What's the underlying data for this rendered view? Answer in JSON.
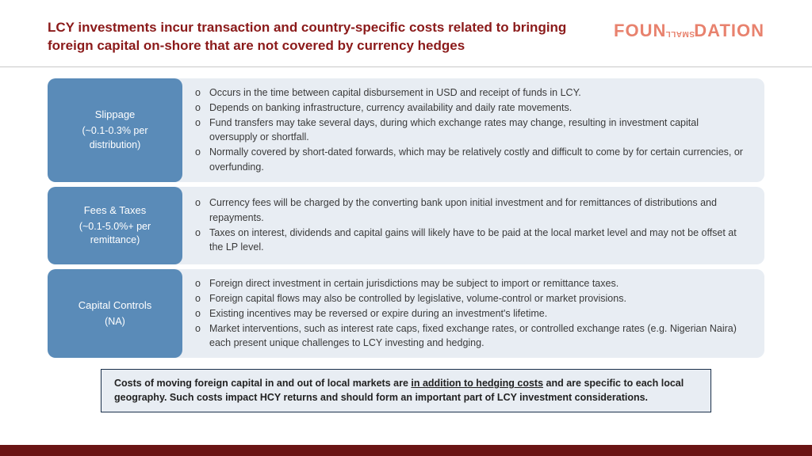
{
  "header": {
    "title": "LCY investments incur transaction and country-specific costs related to bringing foreign capital on-shore that are not covered by currency hedges",
    "logo_left": "FOUN",
    "logo_mid": "SMALL",
    "logo_right": "DATION"
  },
  "colors": {
    "title_color": "#8b1a1a",
    "logo_color": "#e8826e",
    "label_bg": "#5a8bb8",
    "body_bg": "#e8edf3",
    "bottom_bar": "#6a1414",
    "footnote_border": "#1a2f4a"
  },
  "rows": [
    {
      "label_title": "Slippage",
      "label_sub": "(~0.1-0.3% per distribution)",
      "bullets": [
        "Occurs in the time between capital disbursement in USD and receipt of funds in LCY.",
        "Depends on banking infrastructure, currency availability and daily rate movements.",
        "Fund transfers may take several days, during which exchange rates may change, resulting in investment capital oversupply or shortfall.",
        "Normally covered by short-dated forwards, which may be relatively costly and difficult to come by for certain currencies, or overfunding."
      ]
    },
    {
      "label_title": "Fees & Taxes",
      "label_sub": "(~0.1-5.0%+ per remittance)",
      "bullets": [
        "Currency fees will be charged by the converting bank upon initial investment and for remittances of distributions and repayments.",
        "Taxes on interest, dividends and capital gains will likely have to be paid at the local market level and may not be offset at the LP level."
      ]
    },
    {
      "label_title": "Capital Controls",
      "label_sub": "(NA)",
      "bullets": [
        "Foreign direct investment in certain jurisdictions may be subject to import or remittance taxes.",
        "Foreign capital flows may also be controlled by legislative, volume-control or market provisions.",
        "Existing incentives may be reversed or expire during an investment's lifetime.",
        "Market interventions, such as interest rate caps, fixed exchange rates, or controlled exchange rates (e.g. Nigerian Naira) each present unique challenges to LCY investing and hedging."
      ]
    }
  ],
  "footnote": {
    "pre": "Costs of moving foreign capital in and out of local markets are ",
    "ul": "in addition to hedging costs",
    "post": " and are specific to each local geography. Such costs impact HCY returns and should form an important part of LCY investment considerations."
  }
}
